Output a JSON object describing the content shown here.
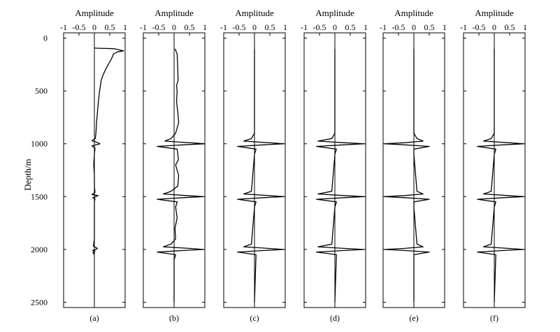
{
  "chart_data": {
    "type": "line",
    "layout": "six vertical panels sharing a depth axis",
    "ylabel": "Depth/m",
    "ylim": [
      2550,
      -50
    ],
    "yticks": [
      0,
      500,
      1000,
      1500,
      2000,
      2500
    ],
    "ytick_labels": [
      "0",
      "500",
      "1000",
      "1500",
      "2000",
      "2500"
    ],
    "xlim": [
      -1,
      1
    ],
    "xticks": [
      -1,
      -0.5,
      0,
      0.5,
      1
    ],
    "xtick_labels": [
      "-1",
      "-0.5",
      "0",
      "0.5",
      "1"
    ],
    "grid": false,
    "panels": [
      {
        "label": "(a)",
        "xlabel": "Amplitude",
        "depth": [
          95,
          100,
          120,
          130,
          150,
          200,
          250,
          300,
          350,
          400,
          500,
          600,
          700,
          800,
          900,
          950,
          970,
          990,
          1000,
          1010,
          1020,
          1040,
          1100,
          1200,
          1300,
          1400,
          1460,
          1480,
          1490,
          1500,
          1510,
          1520,
          1550,
          1700,
          1900,
          1970,
          1990,
          2000,
          2010,
          2020,
          2030,
          2050
        ],
        "amplitude": [
          0,
          0.65,
          0.95,
          0.75,
          0.62,
          0.55,
          0.45,
          0.36,
          0.28,
          0.22,
          0.17,
          0.13,
          0.1,
          0.07,
          0.05,
          0.03,
          -0.08,
          0.12,
          0.18,
          0.05,
          -0.08,
          0.02,
          0.0,
          -0.02,
          0.0,
          0.0,
          0.02,
          -0.08,
          0.12,
          0.05,
          -0.05,
          0.02,
          0.0,
          0.0,
          0.0,
          -0.03,
          0.1,
          0.05,
          -0.06,
          0.02,
          -0.05,
          0.0
        ]
      },
      {
        "label": "(b)",
        "xlabel": "Amplitude",
        "depth": [
          100,
          150,
          300,
          400,
          450,
          500,
          600,
          700,
          800,
          900,
          950,
          975,
          990,
          1000,
          1010,
          1025,
          1050,
          1100,
          1150,
          1200,
          1300,
          1400,
          1450,
          1475,
          1490,
          1500,
          1510,
          1525,
          1550,
          1600,
          1700,
          1800,
          1900,
          1950,
          1975,
          1990,
          2000,
          2010,
          2025,
          2050,
          2100,
          2500
        ],
        "amplitude": [
          0.03,
          0.1,
          0.12,
          0.13,
          0.08,
          0.1,
          0.08,
          0.12,
          0.15,
          0.05,
          -0.1,
          -0.3,
          0.5,
          1.0,
          0.3,
          -0.55,
          0.1,
          0.12,
          0.14,
          0.05,
          0.15,
          0.12,
          -0.1,
          -0.35,
          0.4,
          0.95,
          0.3,
          -0.55,
          0.1,
          0.05,
          0.1,
          0.03,
          0.05,
          -0.1,
          -0.35,
          0.5,
          0.95,
          0.3,
          -0.55,
          0.05,
          0.0,
          0.0
        ]
      },
      {
        "label": "(c)",
        "xlabel": "Amplitude",
        "depth": [
          100,
          500,
          900,
          950,
          975,
          990,
          1000,
          1010,
          1025,
          1050,
          1100,
          1450,
          1475,
          1490,
          1500,
          1510,
          1525,
          1550,
          1600,
          1950,
          1975,
          1990,
          2000,
          2010,
          2025,
          2050,
          2500
        ],
        "amplitude": [
          0.0,
          0.0,
          0.0,
          -0.1,
          -0.35,
          0.45,
          0.95,
          0.3,
          -0.55,
          0.05,
          0.0,
          -0.1,
          -0.35,
          0.45,
          0.95,
          0.3,
          -0.55,
          0.05,
          0.0,
          -0.1,
          -0.35,
          0.45,
          0.95,
          0.3,
          -0.55,
          0.05,
          0.0
        ]
      },
      {
        "label": "(d)",
        "xlabel": "Amplitude",
        "depth": [
          100,
          500,
          900,
          950,
          975,
          990,
          1000,
          1010,
          1025,
          1050,
          1100,
          1450,
          1475,
          1490,
          1500,
          1510,
          1525,
          1550,
          1600,
          1950,
          1975,
          1990,
          2000,
          2010,
          2025,
          2050,
          2500
        ],
        "amplitude": [
          0.0,
          0.0,
          0.0,
          -0.1,
          -0.55,
          0.3,
          0.95,
          0.3,
          -0.6,
          0.05,
          0.0,
          -0.1,
          -0.55,
          0.3,
          0.95,
          0.3,
          -0.6,
          0.05,
          0.0,
          -0.1,
          -0.55,
          0.3,
          0.95,
          0.3,
          -0.6,
          0.05,
          0.0
        ]
      },
      {
        "label": "(e)",
        "xlabel": "Amplitude",
        "depth": [
          100,
          500,
          900,
          950,
          975,
          990,
          1000,
          1010,
          1025,
          1050,
          1100,
          1450,
          1475,
          1490,
          1500,
          1510,
          1525,
          1550,
          1600,
          1950,
          1975,
          1990,
          2000,
          2010,
          2025,
          2050,
          2500
        ],
        "amplitude": [
          0.0,
          0.0,
          0.0,
          0.1,
          0.3,
          -0.3,
          -0.95,
          -0.3,
          0.5,
          0.0,
          0.0,
          0.1,
          0.3,
          -0.3,
          -0.95,
          -0.3,
          0.5,
          0.0,
          0.0,
          0.1,
          0.3,
          -0.3,
          -0.95,
          -0.3,
          0.5,
          0.0,
          0.0
        ]
      },
      {
        "label": "(f)",
        "xlabel": "Amplitude",
        "depth": [
          100,
          500,
          900,
          950,
          975,
          990,
          1000,
          1010,
          1025,
          1050,
          1100,
          1450,
          1475,
          1490,
          1500,
          1510,
          1525,
          1550,
          1600,
          1950,
          1975,
          1990,
          2000,
          2010,
          2025,
          2050,
          2500
        ],
        "amplitude": [
          0.0,
          0.0,
          0.0,
          -0.1,
          -0.35,
          0.45,
          0.95,
          0.3,
          -0.55,
          0.05,
          0.0,
          -0.1,
          -0.35,
          0.45,
          0.95,
          0.3,
          -0.55,
          0.05,
          0.0,
          -0.1,
          -0.35,
          0.45,
          0.95,
          0.3,
          -0.55,
          0.05,
          0.0
        ]
      }
    ]
  }
}
